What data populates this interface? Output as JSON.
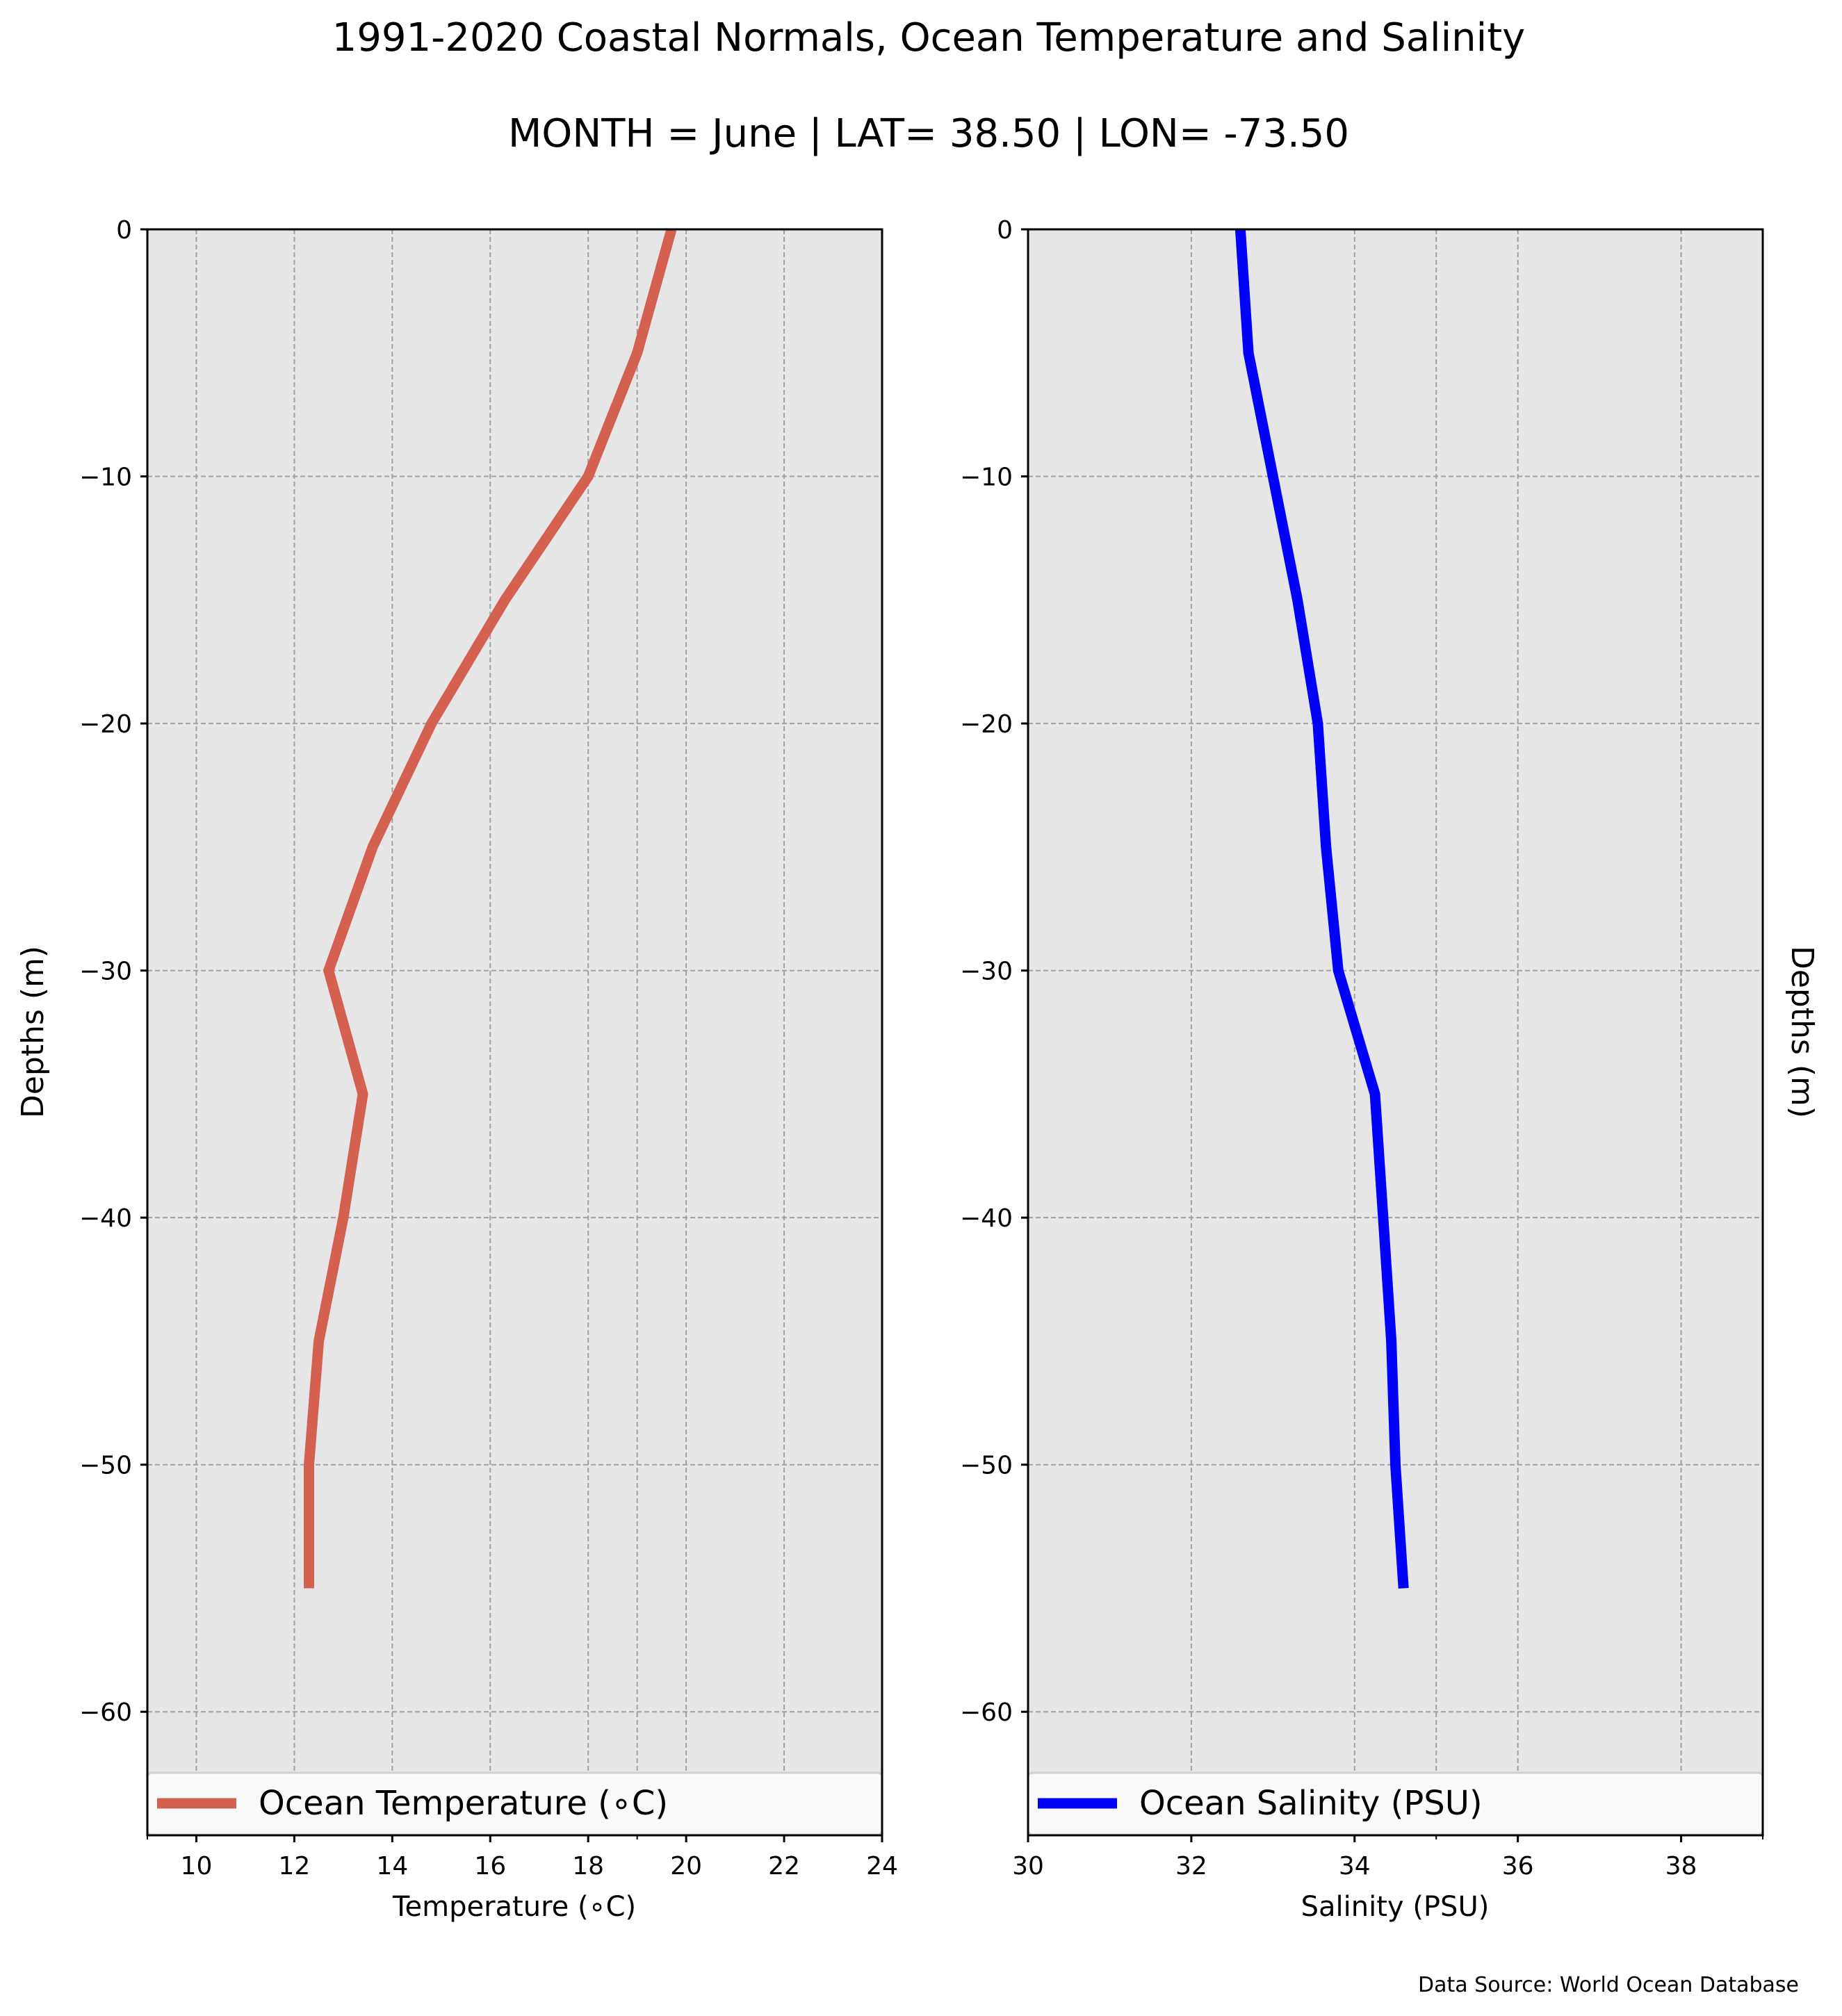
{
  "title_line1": "1991-2020 Coastal Normals, Ocean Temperature and Salinity",
  "title_line2": "MONTH = June | LAT= 38.50 | LON= -73.50",
  "source_note": "Data Source: World Ocean Database",
  "colors": {
    "axes_background": "#e6e6e6",
    "temperature_line": "#d46050",
    "salinity_line": "#0000ff",
    "grid": "#a0a0a0"
  },
  "chart_data": [
    {
      "type": "line",
      "orientation": "profile",
      "x": [
        19.7,
        19.0,
        18.0,
        16.3,
        14.8,
        13.6,
        12.7,
        13.4,
        13.0,
        12.5,
        12.3,
        12.3
      ],
      "y": [
        0,
        -5,
        -10,
        -15,
        -20,
        -25,
        -30,
        -35,
        -40,
        -45,
        -50,
        -55
      ],
      "series": [
        {
          "name": "Ocean Temperature ($^\\circ$C)",
          "legend_label": "Ocean Temperature (∘C)"
        }
      ],
      "xlabel": "Temperature (∘C)",
      "ylabel": "Depths (m)",
      "xlim": [
        9,
        24
      ],
      "ylim": [
        -65,
        0
      ],
      "xticks": [
        10,
        12,
        14,
        16,
        18,
        20,
        22,
        24
      ],
      "xticklabels": [
        "10",
        "12",
        "14",
        "16",
        "18",
        "20",
        "22",
        "24"
      ],
      "yticks": [
        0,
        -10,
        -20,
        -30,
        -40,
        -50,
        -60
      ],
      "yticklabels": [
        "0",
        "−10",
        "−20",
        "−30",
        "−40",
        "−50",
        "−60"
      ],
      "grid": true,
      "legend_placement": "lower center"
    },
    {
      "type": "line",
      "orientation": "profile",
      "x": [
        32.6,
        32.7,
        33.0,
        33.3,
        33.55,
        33.65,
        33.8,
        34.25,
        34.35,
        34.45,
        34.5,
        34.6
      ],
      "y": [
        0,
        -5,
        -10,
        -15,
        -20,
        -25,
        -30,
        -35,
        -40,
        -45,
        -50,
        -55
      ],
      "series": [
        {
          "name": "Ocean Salinity (PSU)",
          "legend_label": "Ocean Salinity (PSU)"
        }
      ],
      "xlabel": "Salinity (PSU)",
      "ylabel": "Depths (m)",
      "xlim": [
        30,
        39
      ],
      "ylim": [
        -65,
        0
      ],
      "xticks": [
        30,
        32,
        34,
        36,
        38
      ],
      "xticklabels": [
        "30",
        "32",
        "34",
        "36",
        "38"
      ],
      "yticks": [
        0,
        -10,
        -20,
        -30,
        -40,
        -50,
        -60
      ],
      "yticklabels": [
        "0",
        "−10",
        "−20",
        "−30",
        "−40",
        "−50",
        "−60"
      ],
      "grid": true,
      "legend_placement": "lower center"
    }
  ]
}
